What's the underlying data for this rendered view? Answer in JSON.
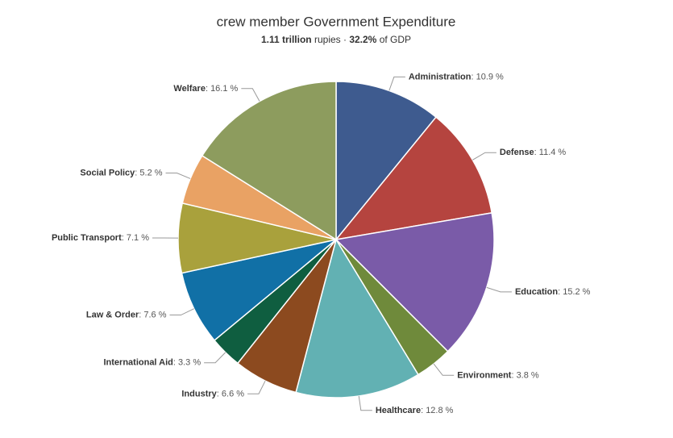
{
  "chart_data": {
    "type": "pie",
    "title": "crew member Government Expenditure",
    "subtitle": [
      {
        "text": "1.11 trillion",
        "bold": true
      },
      {
        "text": " rupies · "
      },
      {
        "text": "32.2%",
        "bold": true
      },
      {
        "text": " of GDP"
      }
    ],
    "categories": [
      "Administration",
      "Defense",
      "Education",
      "Environment",
      "Healthcare",
      "Industry",
      "International Aid",
      "Law & Order",
      "Public Transport",
      "Social Policy",
      "Welfare"
    ],
    "values": [
      10.9,
      11.4,
      15.2,
      3.8,
      12.8,
      6.6,
      3.3,
      7.6,
      7.1,
      5.2,
      16.1
    ],
    "value_labels": [
      ": 10.9 %",
      ": 11.4 %",
      ": 15.2 %",
      ": 3.8 %",
      ": 12.8 %",
      ": 6.6 %",
      ": 3.3 %",
      ": 7.6 %",
      ": 7.1 %",
      ": 5.2 %",
      ": 16.1 %"
    ],
    "colors": [
      "#3e5b8f",
      "#b5443f",
      "#7a5ba8",
      "#6f8a3b",
      "#62b1b3",
      "#8c4a1f",
      "#0f5e40",
      "#1170a6",
      "#a9a13c",
      "#e9a264",
      "#8d9c5e"
    ]
  }
}
